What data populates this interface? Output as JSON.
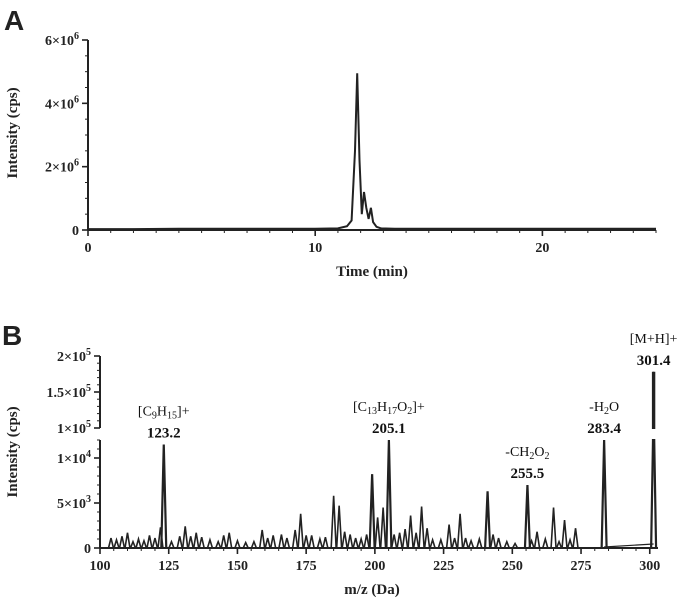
{
  "chart_data": [
    {
      "type": "line",
      "panel": "A",
      "xlabel": "Time (min)",
      "ylabel": "Intensity (cps)",
      "xlim": [
        0,
        25
      ],
      "ylim": [
        0,
        6000000
      ],
      "xticks": [
        "0",
        "10",
        "20"
      ],
      "yticks": [
        {
          "value": 0,
          "base": "0",
          "exp": ""
        },
        {
          "value": 2000000,
          "base": "2×10",
          "exp": "6"
        },
        {
          "value": 4000000,
          "base": "4×10",
          "exp": "6"
        },
        {
          "value": 6000000,
          "base": "6×10",
          "exp": "6"
        }
      ],
      "series": [
        {
          "x": [
            0,
            2,
            4,
            6,
            8,
            10,
            11,
            11.4,
            11.6,
            11.75,
            11.85,
            11.95,
            12.05,
            12.15,
            12.25,
            12.35,
            12.45,
            12.55,
            12.7,
            12.9,
            13.5,
            16,
            20,
            25
          ],
          "y": [
            30000,
            30000,
            40000,
            40000,
            40000,
            40000,
            50000,
            120000,
            300000,
            2500000,
            4950000,
            2200000,
            500000,
            1200000,
            700000,
            350000,
            700000,
            250000,
            100000,
            50000,
            40000,
            40000,
            40000,
            40000
          ]
        }
      ]
    },
    {
      "type": "bar",
      "panel": "B",
      "xlabel": "m/z (Da)",
      "ylabel": "Intensity (cps)",
      "xlim": [
        100,
        303
      ],
      "xticks": [
        "100",
        "125",
        "150",
        "175",
        "200",
        "225",
        "250",
        "275",
        "300"
      ],
      "ylim_lower": [
        0,
        12000
      ],
      "ylim_upper": [
        100000,
        200000
      ],
      "yticks_lower": [
        {
          "value": 0,
          "base": "0",
          "exp": ""
        },
        {
          "value": 5000,
          "base": "5×10",
          "exp": "3"
        },
        {
          "value": 10000,
          "base": "1×10",
          "exp": "4"
        }
      ],
      "yticks_upper": [
        {
          "value": 100000,
          "base": "1×10",
          "exp": "5"
        },
        {
          "value": 150000,
          "base": "1.5×10",
          "exp": "5"
        },
        {
          "value": 200000,
          "base": "2×10",
          "exp": "5"
        }
      ],
      "peaks": [
        {
          "mz": 104,
          "i": 1100
        },
        {
          "mz": 106,
          "i": 900
        },
        {
          "mz": 108,
          "i": 1300
        },
        {
          "mz": 110,
          "i": 1700
        },
        {
          "mz": 112,
          "i": 700
        },
        {
          "mz": 114,
          "i": 1000
        },
        {
          "mz": 116,
          "i": 800
        },
        {
          "mz": 118,
          "i": 1400
        },
        {
          "mz": 120,
          "i": 1100
        },
        {
          "mz": 122,
          "i": 2300
        },
        {
          "mz": 123.2,
          "i": 11500
        },
        {
          "mz": 126,
          "i": 700
        },
        {
          "mz": 129,
          "i": 1300
        },
        {
          "mz": 131,
          "i": 2400
        },
        {
          "mz": 133,
          "i": 1300
        },
        {
          "mz": 135,
          "i": 1700
        },
        {
          "mz": 137,
          "i": 1200
        },
        {
          "mz": 140,
          "i": 900
        },
        {
          "mz": 143,
          "i": 700
        },
        {
          "mz": 145,
          "i": 1400
        },
        {
          "mz": 147,
          "i": 1700
        },
        {
          "mz": 150,
          "i": 800
        },
        {
          "mz": 153,
          "i": 600
        },
        {
          "mz": 156,
          "i": 700
        },
        {
          "mz": 159,
          "i": 2000
        },
        {
          "mz": 161,
          "i": 1100
        },
        {
          "mz": 163,
          "i": 1400
        },
        {
          "mz": 166,
          "i": 1500
        },
        {
          "mz": 168,
          "i": 1100
        },
        {
          "mz": 171,
          "i": 2000
        },
        {
          "mz": 173,
          "i": 3800
        },
        {
          "mz": 175,
          "i": 1400
        },
        {
          "mz": 177,
          "i": 1400
        },
        {
          "mz": 180,
          "i": 1000
        },
        {
          "mz": 182,
          "i": 1200
        },
        {
          "mz": 185,
          "i": 5800
        },
        {
          "mz": 187,
          "i": 4700
        },
        {
          "mz": 189,
          "i": 1800
        },
        {
          "mz": 191,
          "i": 1500
        },
        {
          "mz": 193,
          "i": 1100
        },
        {
          "mz": 195,
          "i": 1000
        },
        {
          "mz": 197,
          "i": 1500
        },
        {
          "mz": 199,
          "i": 8200
        },
        {
          "mz": 201,
          "i": 3400
        },
        {
          "mz": 203,
          "i": 4500
        },
        {
          "mz": 205.1,
          "i": 12000
        },
        {
          "mz": 207,
          "i": 1500
        },
        {
          "mz": 209,
          "i": 1700
        },
        {
          "mz": 211,
          "i": 2100
        },
        {
          "mz": 213,
          "i": 3600
        },
        {
          "mz": 215,
          "i": 1700
        },
        {
          "mz": 217,
          "i": 4600
        },
        {
          "mz": 219,
          "i": 2200
        },
        {
          "mz": 221,
          "i": 900
        },
        {
          "mz": 224,
          "i": 900
        },
        {
          "mz": 227,
          "i": 2600
        },
        {
          "mz": 229,
          "i": 1100
        },
        {
          "mz": 231,
          "i": 3800
        },
        {
          "mz": 233,
          "i": 1100
        },
        {
          "mz": 235,
          "i": 800
        },
        {
          "mz": 238,
          "i": 1000
        },
        {
          "mz": 241,
          "i": 6300
        },
        {
          "mz": 243,
          "i": 1500
        },
        {
          "mz": 245,
          "i": 1100
        },
        {
          "mz": 248,
          "i": 700
        },
        {
          "mz": 251,
          "i": 500
        },
        {
          "mz": 255.5,
          "i": 7000
        },
        {
          "mz": 257,
          "i": 800
        },
        {
          "mz": 259,
          "i": 1800
        },
        {
          "mz": 262,
          "i": 1000
        },
        {
          "mz": 265,
          "i": 4500
        },
        {
          "mz": 267,
          "i": 700
        },
        {
          "mz": 269,
          "i": 3100
        },
        {
          "mz": 271,
          "i": 900
        },
        {
          "mz": 273,
          "i": 2200
        },
        {
          "mz": 283.4,
          "i": 12000
        },
        {
          "mz": 301.4,
          "i": 178000
        }
      ],
      "annotations": [
        {
          "mz": 123.2,
          "label_parts": [
            [
              "[C",
              ""
            ],
            [
              "9",
              "sub"
            ],
            [
              "H",
              ""
            ],
            [
              "15",
              "sub"
            ],
            [
              "]+",
              ""
            ]
          ],
          "value": "123.2"
        },
        {
          "mz": 205.1,
          "label_parts": [
            [
              "[C",
              ""
            ],
            [
              "13",
              "sub"
            ],
            [
              "H",
              ""
            ],
            [
              "17",
              "sub"
            ],
            [
              "O",
              ""
            ],
            [
              "2",
              "sub"
            ],
            [
              "]+",
              ""
            ]
          ],
          "value": "205.1"
        },
        {
          "mz": 255.5,
          "label_parts": [
            [
              "-CH",
              ""
            ],
            [
              "2",
              "sub"
            ],
            [
              "O",
              ""
            ],
            [
              "2",
              "sub"
            ]
          ],
          "value": "255.5"
        },
        {
          "mz": 283.4,
          "label_parts": [
            [
              "-H",
              ""
            ],
            [
              "2",
              "sub"
            ],
            [
              "O",
              ""
            ]
          ],
          "value": "283.4"
        },
        {
          "mz": 301.4,
          "label_parts": [
            [
              "[M+H]+",
              ""
            ]
          ],
          "value": "301.4"
        }
      ]
    }
  ],
  "panels": {
    "a_letter": "A",
    "b_letter": "B"
  }
}
